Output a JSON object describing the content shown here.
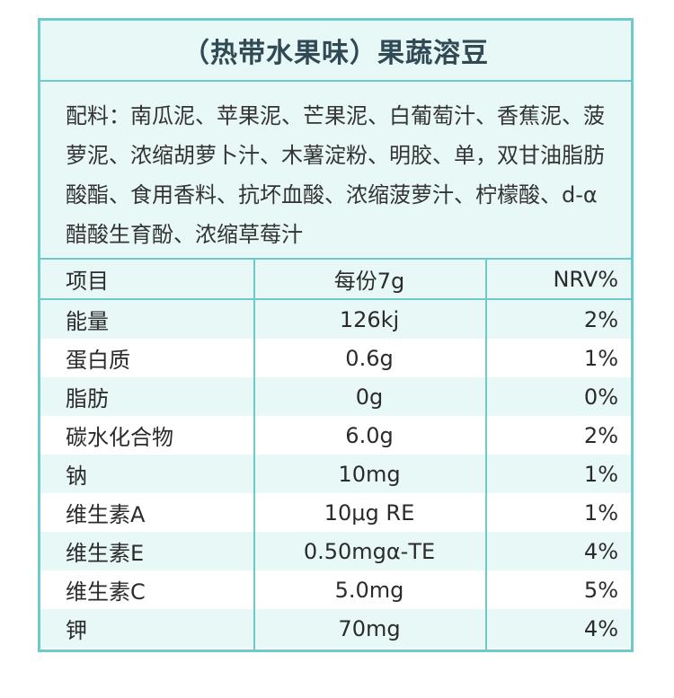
{
  "title": "（热带水果味）果蔬溶豆",
  "ingredients": "配料：南瓜泥、苹果泥、芒果泥、白葡萄汁、香蕉泥、菠萝泥、浓缩胡萝卜汁、木薯淀粉、明胶、单，双甘油脂肪酸酯、食用香料、抗坏血酸、浓缩菠萝汁、柠檬酸、d-α醋酸生育酚、浓缩草莓汁",
  "table": {
    "headers": [
      "项目",
      "每份7g",
      "NRV%"
    ],
    "rows": [
      {
        "item": "能量",
        "amount": "126kj",
        "nrv": "2%"
      },
      {
        "item": "蛋白质",
        "amount": "0.6g",
        "nrv": "1%"
      },
      {
        "item": "脂肪",
        "amount": "0g",
        "nrv": "0%"
      },
      {
        "item": "碳水化合物",
        "amount": "6.0g",
        "nrv": "2%"
      },
      {
        "item": "钠",
        "amount": "10mg",
        "nrv": "1%"
      },
      {
        "item": "维生素A",
        "amount": "10μg RE",
        "nrv": "1%"
      },
      {
        "item": "维生素E",
        "amount": "0.50mgα-TE",
        "nrv": "4%"
      },
      {
        "item": "维生素C",
        "amount": "5.0mg",
        "nrv": "5%"
      },
      {
        "item": "钾",
        "amount": "70mg",
        "nrv": "4%"
      }
    ]
  },
  "colors": {
    "border": "#6cc9cc",
    "shade": "#e8f8f7",
    "title_text": "#2f4a55"
  }
}
